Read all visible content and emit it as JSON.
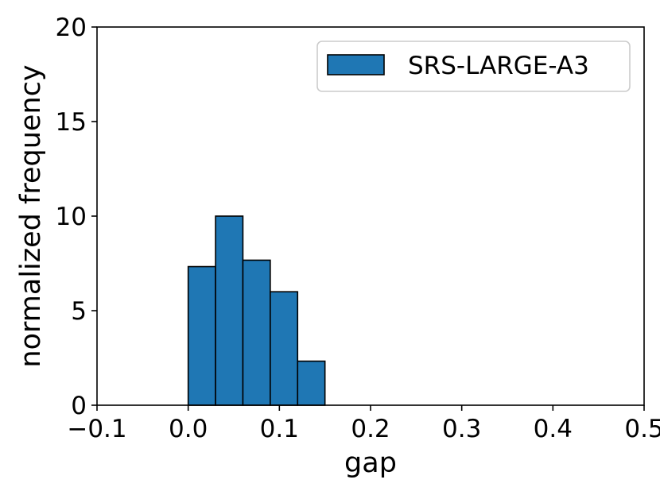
{
  "chart_data": {
    "type": "bar",
    "xlabel": "gap",
    "ylabel": "normalized frequency",
    "xlim": [
      -0.1,
      0.5
    ],
    "ylim": [
      0,
      20
    ],
    "x_ticks": [
      "−0.1",
      "0.0",
      "0.1",
      "0.2",
      "0.3",
      "0.4",
      "0.5"
    ],
    "x_tick_values": [
      -0.1,
      0.0,
      0.1,
      0.2,
      0.3,
      0.4,
      0.5
    ],
    "y_ticks": [
      "0",
      "5",
      "10",
      "15",
      "20"
    ],
    "y_tick_values": [
      0,
      5,
      10,
      15,
      20
    ],
    "bin_edges": [
      0.0,
      0.03,
      0.06,
      0.09,
      0.12,
      0.15
    ],
    "series": [
      {
        "name": "SRS-LARGE-A3",
        "color": "#1f77b4",
        "values": [
          7.33,
          10.0,
          7.67,
          6.0,
          2.33
        ]
      }
    ],
    "legend_position": "top-right",
    "grid": false
  }
}
